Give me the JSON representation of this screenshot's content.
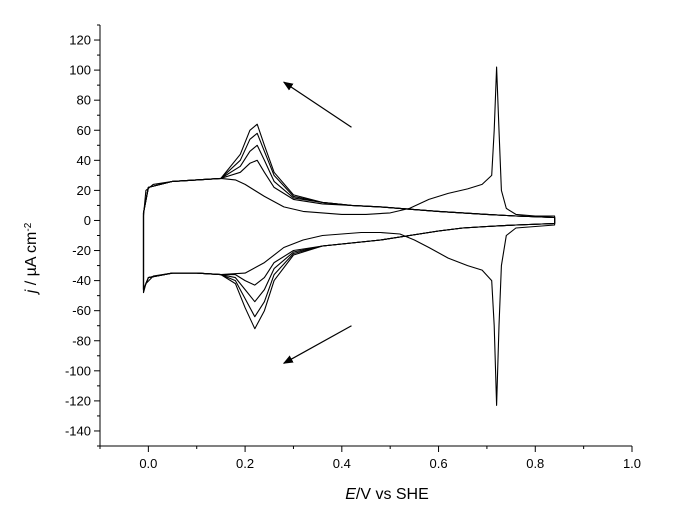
{
  "chart_data": {
    "type": "line",
    "title": "",
    "xlabel": {
      "italic": "E",
      "rest": "/V vs SHE"
    },
    "ylabel": {
      "italic": "j",
      "rest": " / µA cm",
      "sup": "-2"
    },
    "xlim": [
      -0.1,
      1.0
    ],
    "ylim": [
      -150,
      130
    ],
    "x_ticks": [
      0.0,
      0.2,
      0.4,
      0.6,
      0.8,
      1.0
    ],
    "x_tick_labels": [
      "0.0",
      "0.2",
      "0.4",
      "0.6",
      "0.8",
      "1.0"
    ],
    "y_ticks": [
      120,
      100,
      80,
      60,
      40,
      20,
      0,
      -20,
      -40,
      -60,
      -80,
      -100,
      -120,
      -140
    ],
    "y_tick_labels": [
      "120",
      "100",
      "80",
      "60",
      "40",
      "20",
      "0",
      "-20",
      "-40",
      "-60",
      "-80",
      "-100",
      "-120",
      "-140"
    ],
    "grid": false,
    "legend": "none",
    "line_color": "#000000",
    "annotations": [
      {
        "type": "arrow",
        "direction": "negative-going scan",
        "from": [
          0.42,
          62
        ],
        "to": [
          0.28,
          92
        ]
      },
      {
        "type": "arrow",
        "direction": "negative-going scan",
        "from": [
          0.42,
          -70
        ],
        "to": [
          0.28,
          -95
        ]
      }
    ],
    "series": [
      {
        "cycle": 1,
        "points": [
          [
            -0.01,
            3
          ],
          [
            -0.005,
            20
          ],
          [
            0.01,
            24
          ],
          [
            0.05,
            26
          ],
          [
            0.1,
            27
          ],
          [
            0.15,
            28
          ],
          [
            0.18,
            27
          ],
          [
            0.2,
            24
          ],
          [
            0.24,
            16
          ],
          [
            0.28,
            9
          ],
          [
            0.32,
            6
          ],
          [
            0.36,
            5
          ],
          [
            0.4,
            4
          ],
          [
            0.45,
            4
          ],
          [
            0.5,
            5
          ],
          [
            0.54,
            8
          ],
          [
            0.58,
            14
          ],
          [
            0.62,
            18
          ],
          [
            0.66,
            21
          ],
          [
            0.69,
            24
          ],
          [
            0.71,
            30
          ],
          [
            0.715,
            60
          ],
          [
            0.72,
            102
          ],
          [
            0.725,
            60
          ],
          [
            0.73,
            20
          ],
          [
            0.74,
            8
          ],
          [
            0.76,
            4
          ],
          [
            0.8,
            3
          ],
          [
            0.84,
            3
          ],
          [
            0.84,
            -3
          ],
          [
            0.8,
            -4
          ],
          [
            0.76,
            -5
          ],
          [
            0.74,
            -10
          ],
          [
            0.73,
            -30
          ],
          [
            0.725,
            -70
          ],
          [
            0.72,
            -123
          ],
          [
            0.715,
            -70
          ],
          [
            0.71,
            -40
          ],
          [
            0.69,
            -33
          ],
          [
            0.66,
            -30
          ],
          [
            0.62,
            -25
          ],
          [
            0.58,
            -18
          ],
          [
            0.55,
            -13
          ],
          [
            0.52,
            -9
          ],
          [
            0.48,
            -8
          ],
          [
            0.44,
            -8
          ],
          [
            0.4,
            -9
          ],
          [
            0.36,
            -10
          ],
          [
            0.32,
            -13
          ],
          [
            0.28,
            -18
          ],
          [
            0.24,
            -28
          ],
          [
            0.2,
            -35
          ],
          [
            0.15,
            -36
          ],
          [
            0.1,
            -35
          ],
          [
            0.05,
            -35
          ],
          [
            0.01,
            -37
          ],
          [
            -0.005,
            -42
          ],
          [
            -0.01,
            -48
          ]
        ]
      },
      {
        "cycle": 2,
        "points": [
          [
            -0.01,
            5
          ],
          [
            0.0,
            22
          ],
          [
            0.05,
            26
          ],
          [
            0.1,
            27
          ],
          [
            0.15,
            28
          ],
          [
            0.19,
            32
          ],
          [
            0.21,
            38
          ],
          [
            0.225,
            40
          ],
          [
            0.24,
            32
          ],
          [
            0.26,
            22
          ],
          [
            0.3,
            14
          ],
          [
            0.36,
            11
          ],
          [
            0.42,
            10
          ],
          [
            0.48,
            9
          ],
          [
            0.52,
            8
          ],
          [
            0.56,
            7
          ],
          [
            0.6,
            6
          ],
          [
            0.65,
            5
          ],
          [
            0.7,
            4
          ],
          [
            0.76,
            3
          ],
          [
            0.84,
            2
          ],
          [
            0.84,
            -2
          ],
          [
            0.76,
            -3
          ],
          [
            0.7,
            -4
          ],
          [
            0.65,
            -5
          ],
          [
            0.6,
            -7
          ],
          [
            0.56,
            -9
          ],
          [
            0.52,
            -11
          ],
          [
            0.48,
            -13
          ],
          [
            0.42,
            -15
          ],
          [
            0.36,
            -17
          ],
          [
            0.3,
            -20
          ],
          [
            0.26,
            -28
          ],
          [
            0.24,
            -38
          ],
          [
            0.22,
            -43
          ],
          [
            0.2,
            -40
          ],
          [
            0.18,
            -36
          ],
          [
            0.15,
            -36
          ],
          [
            0.1,
            -35
          ],
          [
            0.05,
            -35
          ],
          [
            0.0,
            -38
          ],
          [
            -0.01,
            -46
          ]
        ]
      },
      {
        "cycle": 3,
        "points": [
          [
            -0.01,
            5
          ],
          [
            0.0,
            22
          ],
          [
            0.05,
            26
          ],
          [
            0.1,
            27
          ],
          [
            0.15,
            28
          ],
          [
            0.19,
            36
          ],
          [
            0.21,
            46
          ],
          [
            0.225,
            50
          ],
          [
            0.24,
            40
          ],
          [
            0.26,
            26
          ],
          [
            0.3,
            15
          ],
          [
            0.36,
            12
          ],
          [
            0.42,
            10
          ],
          [
            0.48,
            9
          ],
          [
            0.52,
            8
          ],
          [
            0.56,
            7
          ],
          [
            0.6,
            6
          ],
          [
            0.65,
            5
          ],
          [
            0.7,
            4
          ],
          [
            0.76,
            3
          ],
          [
            0.84,
            2
          ],
          [
            0.84,
            -2
          ],
          [
            0.76,
            -3
          ],
          [
            0.7,
            -4
          ],
          [
            0.65,
            -5
          ],
          [
            0.6,
            -7
          ],
          [
            0.56,
            -9
          ],
          [
            0.52,
            -11
          ],
          [
            0.48,
            -13
          ],
          [
            0.42,
            -15
          ],
          [
            0.36,
            -17
          ],
          [
            0.3,
            -21
          ],
          [
            0.26,
            -32
          ],
          [
            0.24,
            -46
          ],
          [
            0.22,
            -54
          ],
          [
            0.2,
            -46
          ],
          [
            0.18,
            -38
          ],
          [
            0.15,
            -36
          ],
          [
            0.1,
            -35
          ],
          [
            0.05,
            -35
          ],
          [
            0.0,
            -38
          ],
          [
            -0.01,
            -46
          ]
        ]
      },
      {
        "cycle": 4,
        "points": [
          [
            -0.01,
            5
          ],
          [
            0.0,
            22
          ],
          [
            0.05,
            26
          ],
          [
            0.1,
            27
          ],
          [
            0.15,
            28
          ],
          [
            0.19,
            40
          ],
          [
            0.21,
            54
          ],
          [
            0.225,
            58
          ],
          [
            0.24,
            46
          ],
          [
            0.26,
            30
          ],
          [
            0.3,
            16
          ],
          [
            0.36,
            12
          ],
          [
            0.42,
            10
          ],
          [
            0.48,
            9
          ],
          [
            0.52,
            8
          ],
          [
            0.56,
            7
          ],
          [
            0.6,
            6
          ],
          [
            0.65,
            5
          ],
          [
            0.7,
            4
          ],
          [
            0.76,
            3
          ],
          [
            0.84,
            2
          ],
          [
            0.84,
            -2
          ],
          [
            0.76,
            -3
          ],
          [
            0.7,
            -4
          ],
          [
            0.65,
            -5
          ],
          [
            0.6,
            -7
          ],
          [
            0.56,
            -9
          ],
          [
            0.52,
            -11
          ],
          [
            0.48,
            -13
          ],
          [
            0.42,
            -15
          ],
          [
            0.36,
            -17
          ],
          [
            0.3,
            -22
          ],
          [
            0.26,
            -36
          ],
          [
            0.24,
            -54
          ],
          [
            0.22,
            -64
          ],
          [
            0.2,
            -52
          ],
          [
            0.18,
            -40
          ],
          [
            0.15,
            -36
          ],
          [
            0.1,
            -35
          ],
          [
            0.05,
            -35
          ],
          [
            0.0,
            -38
          ],
          [
            -0.01,
            -46
          ]
        ]
      },
      {
        "cycle": 5,
        "points": [
          [
            -0.01,
            5
          ],
          [
            0.0,
            22
          ],
          [
            0.05,
            26
          ],
          [
            0.1,
            27
          ],
          [
            0.15,
            28
          ],
          [
            0.19,
            44
          ],
          [
            0.21,
            60
          ],
          [
            0.225,
            64
          ],
          [
            0.24,
            50
          ],
          [
            0.26,
            32
          ],
          [
            0.3,
            17
          ],
          [
            0.36,
            12
          ],
          [
            0.42,
            10
          ],
          [
            0.48,
            9
          ],
          [
            0.52,
            8
          ],
          [
            0.56,
            7
          ],
          [
            0.6,
            6
          ],
          [
            0.65,
            5
          ],
          [
            0.7,
            4
          ],
          [
            0.76,
            3
          ],
          [
            0.84,
            2
          ],
          [
            0.84,
            -2
          ],
          [
            0.76,
            -3
          ],
          [
            0.7,
            -4
          ],
          [
            0.65,
            -5
          ],
          [
            0.6,
            -7
          ],
          [
            0.56,
            -9
          ],
          [
            0.52,
            -11
          ],
          [
            0.48,
            -13
          ],
          [
            0.42,
            -15
          ],
          [
            0.36,
            -17
          ],
          [
            0.3,
            -23
          ],
          [
            0.26,
            -40
          ],
          [
            0.24,
            -60
          ],
          [
            0.22,
            -72
          ],
          [
            0.2,
            -58
          ],
          [
            0.18,
            -42
          ],
          [
            0.15,
            -36
          ],
          [
            0.1,
            -35
          ],
          [
            0.05,
            -35
          ],
          [
            0.0,
            -38
          ],
          [
            -0.01,
            -46
          ]
        ]
      }
    ]
  }
}
